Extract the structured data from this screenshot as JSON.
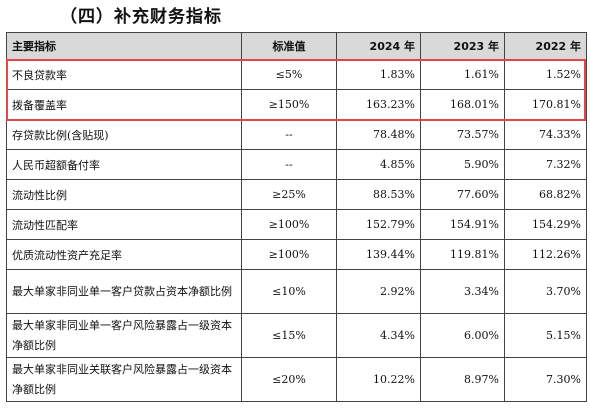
{
  "section_title": "（四）补充财务指标",
  "table": {
    "headers": {
      "name": "主要指标",
      "standard": "标准值",
      "y2024": "2024 年",
      "y2023": "2023 年",
      "y2022": "2022 年"
    },
    "rows": [
      {
        "name": "不良贷款率",
        "standard": "≤5%",
        "y2024": "1.83%",
        "y2023": "1.61%",
        "y2022": "1.52%"
      },
      {
        "name": "拨备覆盖率",
        "standard": "≥150%",
        "y2024": "163.23%",
        "y2023": "168.01%",
        "y2022": "170.81%"
      },
      {
        "name": "存贷款比例(含贴现)",
        "standard": "--",
        "y2024": "78.48%",
        "y2023": "73.57%",
        "y2022": "74.33%"
      },
      {
        "name": "人民币超额备付率",
        "standard": "--",
        "y2024": "4.85%",
        "y2023": "5.90%",
        "y2022": "7.32%"
      },
      {
        "name": "流动性比例",
        "standard": "≥25%",
        "y2024": "88.53%",
        "y2023": "77.60%",
        "y2022": "68.82%"
      },
      {
        "name": "流动性匹配率",
        "standard": "≥100%",
        "y2024": "152.79%",
        "y2023": "154.91%",
        "y2022": "154.29%"
      },
      {
        "name": "优质流动性资产充足率",
        "standard": "≥100%",
        "y2024": "139.44%",
        "y2023": "119.81%",
        "y2022": "112.26%"
      },
      {
        "name": "最大单家非同业单一客户贷款占资本净额比例",
        "standard": "≤10%",
        "y2024": "2.92%",
        "y2023": "3.34%",
        "y2022": "3.70%"
      },
      {
        "name": "最大单家非同业单一客户风险暴露占一级资本净额比例",
        "standard": "≤15%",
        "y2024": "4.34%",
        "y2023": "6.00%",
        "y2022": "5.15%"
      },
      {
        "name": "最大单家非同业关联客户风险暴露占一级资本净额比例",
        "standard": "≤20%",
        "y2024": "10.22%",
        "y2023": "8.97%",
        "y2022": "7.30%"
      }
    ]
  },
  "colors": {
    "header_bg": "#d9d9d9",
    "highlight_border": "#e04848",
    "grid": "#444444"
  }
}
